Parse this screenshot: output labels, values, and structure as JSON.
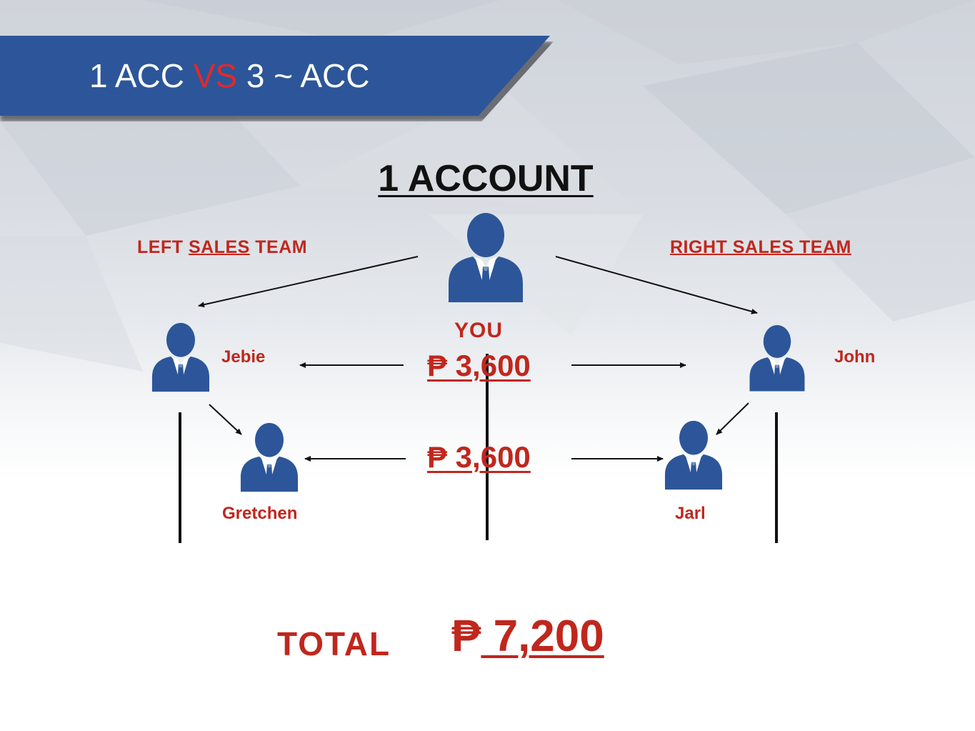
{
  "banner": {
    "part1": "1 ACC ",
    "vs": "VS",
    "part2": " 3 ~ ACC"
  },
  "heading": "1 ACCOUNT",
  "left_team": {
    "prefix": "LEFT ",
    "underlined": "SALES",
    "suffix": " TEAM"
  },
  "right_team": "RIGHT SALES TEAM",
  "people": {
    "you": "YOU",
    "jebie": "Jebie",
    "john": "John",
    "gretchen": "Gretchen",
    "jarl": "Jarl"
  },
  "amounts": {
    "level1": "₱ 3,600",
    "level2": "₱ 3,600"
  },
  "total": {
    "label": "TOTAL",
    "currency": "₱",
    "value": " 7,200"
  },
  "colors": {
    "banner": "#2c5699",
    "accent_red": "#c0271d",
    "person_icon": "#2c5699",
    "lines": "#111111"
  },
  "icons": [
    "person-businessman-icon"
  ]
}
